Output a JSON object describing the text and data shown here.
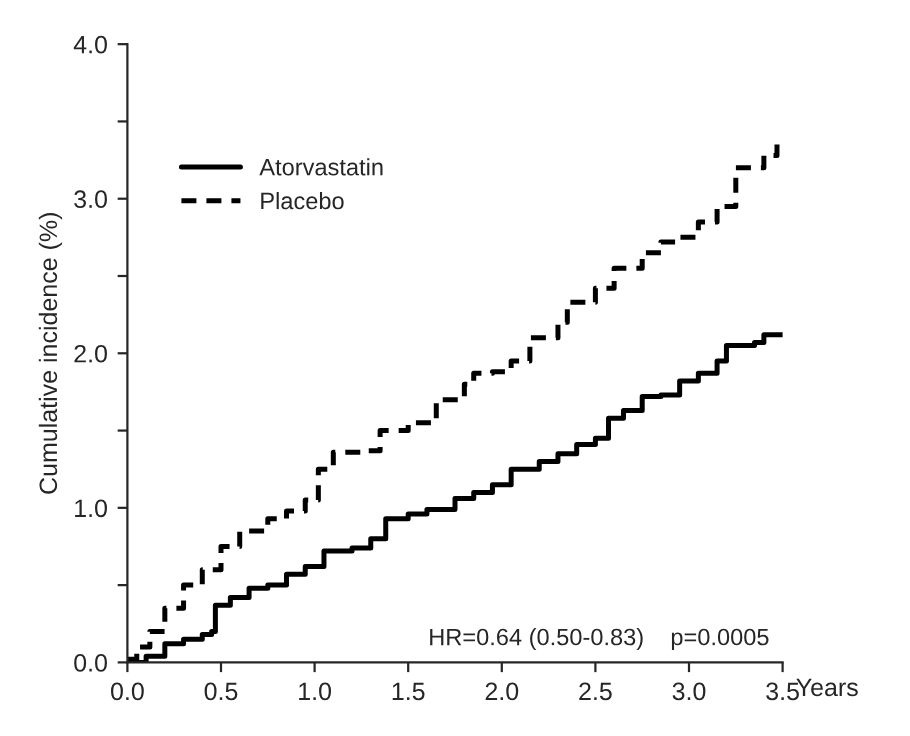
{
  "chart_data": {
    "type": "step",
    "ylabel": "Cumulative incidence (%)",
    "xlabel": "Years",
    "annotations": [
      "HR=0.64 (0.50-0.83)    p=0.0005"
    ],
    "xlim": [
      0,
      3.5
    ],
    "ylim": [
      0,
      4.0
    ],
    "xticks": [
      {
        "value": 0,
        "label": "0.0"
      },
      {
        "value": 0.5,
        "label": "0.5"
      },
      {
        "value": 1,
        "label": "1.0"
      },
      {
        "value": 1.5,
        "label": "1.5"
      },
      {
        "value": 2,
        "label": "2.0"
      },
      {
        "value": 2.5,
        "label": "2.5"
      },
      {
        "value": 3,
        "label": "3.0"
      },
      {
        "value": 3.5,
        "label": "3.5"
      }
    ],
    "yticks": [
      {
        "value": 0,
        "label": "0.0"
      },
      {
        "value": 0.5,
        "label": null
      },
      {
        "value": 1,
        "label": "1.0"
      },
      {
        "value": 1.5,
        "label": null
      },
      {
        "value": 2,
        "label": "2.0"
      },
      {
        "value": 2.5,
        "label": null
      },
      {
        "value": 3,
        "label": "3.0"
      },
      {
        "value": 3.5,
        "label": null
      },
      {
        "value": 4,
        "label": "4.0"
      }
    ],
    "legend": "top left",
    "grid": false,
    "series": [
      {
        "name": "Atorvastatin",
        "color": "#000000",
        "line_style": "solid",
        "x": [
          0,
          0.1,
          0.2,
          0.3,
          0.4,
          0.45,
          0.47,
          0.55,
          0.65,
          0.75,
          0.85,
          0.95,
          1.05,
          1.2,
          1.3,
          1.38,
          1.5,
          1.6,
          1.75,
          1.85,
          1.95,
          2.05,
          2.2,
          2.3,
          2.4,
          2.5,
          2.57,
          2.65,
          2.75,
          2.85,
          2.95,
          3.05,
          3.15,
          3.2,
          3.35,
          3.4,
          3.5
        ],
        "values": [
          0,
          0.04,
          0.12,
          0.15,
          0.18,
          0.2,
          0.37,
          0.42,
          0.48,
          0.5,
          0.57,
          0.62,
          0.72,
          0.74,
          0.8,
          0.93,
          0.96,
          0.99,
          1.06,
          1.1,
          1.15,
          1.25,
          1.3,
          1.35,
          1.41,
          1.45,
          1.58,
          1.63,
          1.72,
          1.73,
          1.82,
          1.87,
          1.95,
          2.05,
          2.07,
          2.12,
          2.12
        ]
      },
      {
        "name": "Placebo",
        "color": "#000000",
        "line_style": "dashed",
        "x": [
          0,
          0.05,
          0.12,
          0.2,
          0.3,
          0.4,
          0.5,
          0.6,
          0.75,
          0.85,
          0.95,
          1.02,
          1.1,
          1.25,
          1.35,
          1.5,
          1.65,
          1.8,
          1.85,
          1.95,
          2.05,
          2.15,
          2.3,
          2.35,
          2.5,
          2.6,
          2.75,
          2.85,
          2.95,
          3.05,
          3.15,
          3.25,
          3.35,
          3.4,
          3.47
        ],
        "values": [
          0.02,
          0.1,
          0.2,
          0.35,
          0.5,
          0.6,
          0.75,
          0.85,
          0.93,
          0.98,
          1.05,
          1.25,
          1.36,
          1.37,
          1.5,
          1.55,
          1.7,
          1.8,
          1.87,
          1.88,
          1.95,
          2.1,
          2.2,
          2.33,
          2.42,
          2.55,
          2.65,
          2.72,
          2.75,
          2.85,
          2.95,
          3.2,
          3.2,
          3.28,
          3.35
        ]
      }
    ]
  }
}
